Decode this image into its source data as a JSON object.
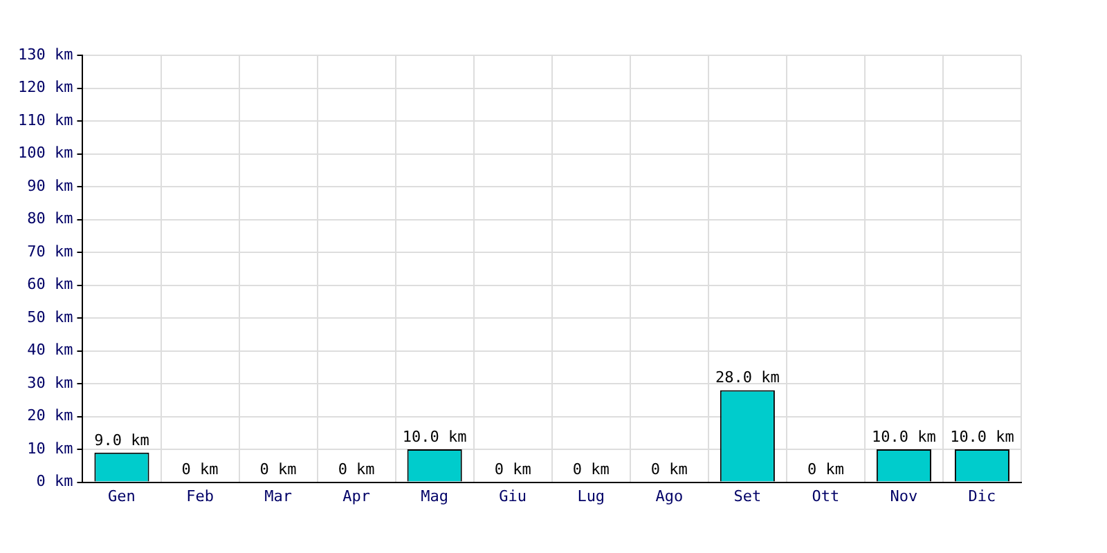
{
  "chart_data": {
    "type": "bar",
    "categories": [
      "Gen",
      "Feb",
      "Mar",
      "Apr",
      "Mag",
      "Giu",
      "Lug",
      "Ago",
      "Set",
      "Ott",
      "Nov",
      "Dic"
    ],
    "values": [
      9.0,
      0,
      0,
      0,
      10.0,
      0,
      0,
      0,
      28.0,
      0,
      10.0,
      10.0
    ],
    "value_labels": [
      "9.0 km",
      "0 km",
      "0 km",
      "0 km",
      "10.0 km",
      "0 km",
      "0 km",
      "0 km",
      "28.0 km",
      "0 km",
      "10.0 km",
      "10.0 km"
    ],
    "color": "#00cccc",
    "ylim": [
      0,
      130
    ],
    "yticks": [
      {
        "value": 0,
        "label": "0 km"
      },
      {
        "value": 10,
        "label": "10 km"
      },
      {
        "value": 20,
        "label": "20 km"
      },
      {
        "value": 30,
        "label": "30 km"
      },
      {
        "value": 40,
        "label": "40 km"
      },
      {
        "value": 50,
        "label": "50 km"
      },
      {
        "value": 60,
        "label": "60 km"
      },
      {
        "value": 70,
        "label": "70 km"
      },
      {
        "value": 80,
        "label": "80 km"
      },
      {
        "value": 90,
        "label": "90 km"
      },
      {
        "value": 100,
        "label": "100 km"
      },
      {
        "value": 110,
        "label": "110 km"
      },
      {
        "value": 120,
        "label": "120 km"
      },
      {
        "value": 130,
        "label": "130 km"
      }
    ],
    "grid": true
  }
}
